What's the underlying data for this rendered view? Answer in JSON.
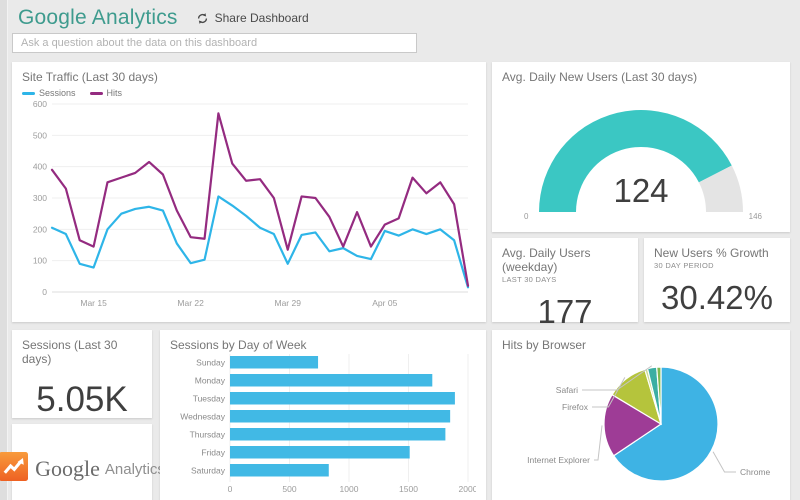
{
  "header": {
    "title": "Google Analytics",
    "share_label": "Share Dashboard"
  },
  "search": {
    "placeholder": "Ask a question about the data on this dashboard"
  },
  "tiles": {
    "site_traffic": {
      "title": "Site Traffic (Last 30 days)"
    },
    "gauge": {
      "title": "Avg. Daily New Users (Last 30 days)"
    },
    "kpi_daily_users": {
      "title": "Avg. Daily Users (weekday)",
      "subtitle": "LAST 30 DAYS",
      "value": "177"
    },
    "kpi_growth": {
      "title": "New Users % Growth",
      "subtitle": "30 DAY PERIOD",
      "value": "30.42%"
    },
    "sessions_total": {
      "title": "Sessions (Last 30 days)",
      "value": "5.05K"
    },
    "logo": {
      "brand": "Google",
      "brand2": "Analytics"
    },
    "day_of_week": {
      "title": "Sessions by Day of Week"
    },
    "browser": {
      "title": "Hits by Browser"
    }
  },
  "colors": {
    "accent_teal": "#3e9b8e",
    "grid_line": "#efefef",
    "axis_text": "#9c9c9c",
    "gauge_fill": "#3bc7c3",
    "gauge_rest": "#e4e4e4",
    "bar_fill": "#41b9e5"
  },
  "chart_data": [
    {
      "id": "site-traffic",
      "type": "line",
      "title": "Site Traffic (Last 30 days)",
      "ylim": [
        0,
        600
      ],
      "y_ticks": [
        0,
        100,
        200,
        300,
        400,
        500,
        600
      ],
      "x_tick_labels": [
        "Mar 15",
        "Mar 22",
        "Mar 29",
        "Apr 05"
      ],
      "x_tick_indices": [
        3,
        10,
        17,
        24
      ],
      "series": [
        {
          "name": "Sessions",
          "color": "#2eb5e8",
          "values": [
            205,
            185,
            90,
            78,
            200,
            250,
            265,
            272,
            260,
            155,
            92,
            103,
            305,
            276,
            243,
            205,
            185,
            90,
            182,
            190,
            130,
            140,
            115,
            105,
            195,
            180,
            200,
            185,
            200,
            165,
            15
          ]
        },
        {
          "name": "Hits",
          "color": "#942b80",
          "values": [
            390,
            330,
            165,
            145,
            350,
            365,
            380,
            415,
            375,
            260,
            175,
            170,
            570,
            410,
            355,
            360,
            300,
            135,
            305,
            300,
            240,
            145,
            255,
            145,
            215,
            235,
            365,
            315,
            350,
            280,
            20
          ]
        }
      ]
    },
    {
      "id": "new-users-gauge",
      "type": "gauge",
      "title": "Avg. Daily New Users (Last 30 days)",
      "value": 124,
      "min": 0,
      "max": 146
    },
    {
      "id": "sessions-by-day",
      "type": "bar",
      "orientation": "horizontal",
      "title": "Sessions by Day of Week",
      "categories": [
        "Sunday",
        "Monday",
        "Tuesday",
        "Wednesday",
        "Thursday",
        "Friday",
        "Saturday"
      ],
      "values": [
        740,
        1700,
        1890,
        1850,
        1810,
        1510,
        830
      ],
      "xlim": [
        0,
        2000
      ],
      "x_ticks": [
        0,
        500,
        1000,
        1500,
        2000
      ]
    },
    {
      "id": "hits-by-browser",
      "type": "pie",
      "title": "Hits by Browser",
      "slices": [
        {
          "label": "Chrome",
          "pct": 65.6,
          "color": "#3eb3e4"
        },
        {
          "label": "Internet Explorer",
          "pct": 18.0,
          "color": "#9e3c96"
        },
        {
          "label": "Firefox",
          "pct": 11.8,
          "color": "#b5c43c"
        },
        {
          "label": "",
          "pct": 0.8,
          "color": "#cddc92"
        },
        {
          "label": "Safari",
          "pct": 2.6,
          "color": "#3baea3"
        },
        {
          "label": "",
          "pct": 1.2,
          "color": "#7cb950"
        }
      ]
    }
  ]
}
